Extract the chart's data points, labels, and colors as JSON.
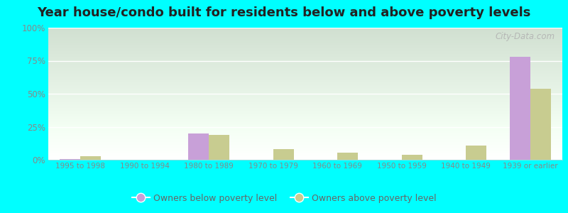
{
  "title": "Year house/condo built for residents below and above poverty levels",
  "categories": [
    "1995 to 1998",
    "1990 to 1994",
    "1980 to 1989",
    "1970 to 1979",
    "1960 to 1969",
    "1950 to 1959",
    "1940 to 1949",
    "1939 or earlier"
  ],
  "below_poverty": [
    0.5,
    0.0,
    20.0,
    0.0,
    0.0,
    0.0,
    0.0,
    78.0
  ],
  "above_poverty": [
    2.5,
    0.0,
    19.0,
    8.0,
    5.5,
    3.5,
    11.0,
    54.0
  ],
  "below_color": "#c8a0d8",
  "above_color": "#c8cc90",
  "title_fontsize": 13,
  "ylabel_ticks": [
    "0%",
    "25%",
    "50%",
    "75%",
    "100%"
  ],
  "ylabel_vals": [
    0,
    25,
    50,
    75,
    100
  ],
  "ylim": [
    0,
    100
  ],
  "bar_width": 0.32,
  "bg_top_color": "#d4eed4",
  "bg_bottom_color": "#eafaea",
  "grid_color": "#e0ece0",
  "watermark": "City-Data.com",
  "legend_below_label": "Owners below poverty level",
  "legend_above_label": "Owners above poverty level",
  "outer_bg": "#00ffff",
  "tick_color": "#888888",
  "spine_color": "#cccccc"
}
